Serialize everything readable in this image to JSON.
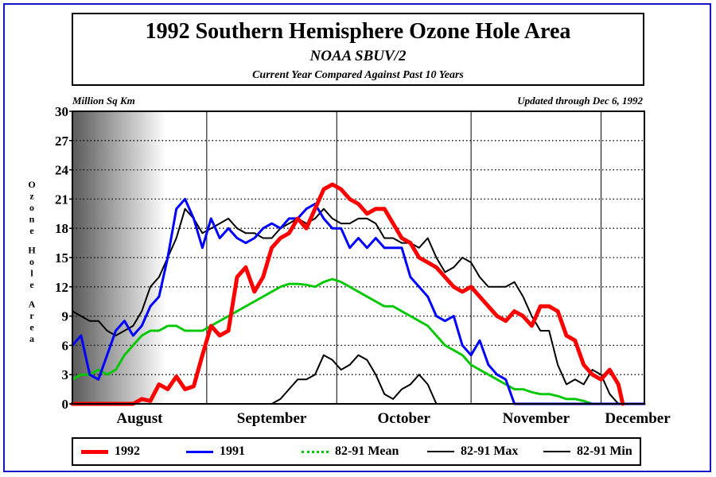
{
  "header": {
    "title": "1992 Southern Hemisphere Ozone Hole Area",
    "subtitle": "NOAA SBUV/2",
    "subsubtitle": "Current Year Compared Against Past 10 Years"
  },
  "chart_data": {
    "type": "line",
    "units_label": "Million Sq Km",
    "updated_label": "Updated through Dec 6, 1992",
    "ylabel": "Ozone Hole Area",
    "ylim": [
      0,
      30
    ],
    "yticks": [
      0,
      3,
      6,
      9,
      12,
      15,
      18,
      21,
      24,
      27,
      30
    ],
    "xlim_day": [
      213,
      345
    ],
    "months": [
      {
        "label": "August",
        "start_day": 213
      },
      {
        "label": "September",
        "start_day": 244
      },
      {
        "label": "October",
        "start_day": 274
      },
      {
        "label": "November",
        "start_day": 305
      },
      {
        "label": "December",
        "start_day": 335
      }
    ],
    "x_unit": "day of year",
    "grid": true,
    "legend_position": "bottom",
    "series": [
      {
        "name": "1992",
        "color": "#ff0000",
        "x": [
          213,
          227,
          229,
          231,
          233,
          235,
          237,
          239,
          241,
          243,
          245,
          247,
          249,
          251,
          253,
          255,
          257,
          259,
          261,
          263,
          265,
          267,
          269,
          271,
          273,
          275,
          277,
          279,
          281,
          283,
          285,
          287,
          289,
          291,
          293,
          295,
          297,
          299,
          301,
          303,
          305,
          307,
          309,
          311,
          313,
          315,
          317,
          319,
          321,
          323,
          325,
          327,
          329,
          331,
          333,
          335,
          337,
          339,
          340
        ],
        "values": [
          0,
          0,
          0.5,
          0.3,
          2,
          1.5,
          2.8,
          1.5,
          1.8,
          5,
          8,
          7,
          7.5,
          13,
          14,
          11.5,
          13,
          16,
          17,
          17.5,
          19,
          18,
          20,
          22,
          22.5,
          22,
          21,
          20.5,
          19.5,
          20,
          20,
          18.5,
          17,
          16.5,
          15,
          14.5,
          14,
          13,
          12,
          11.5,
          12,
          11,
          10,
          9,
          8.5,
          9.5,
          9,
          8,
          10,
          10,
          9.5,
          7,
          6.5,
          4,
          3,
          2.5,
          3.5,
          2,
          0
        ]
      },
      {
        "name": "1991",
        "color": "#0000ff",
        "x": [
          213,
          215,
          217,
          219,
          221,
          223,
          225,
          227,
          229,
          231,
          233,
          235,
          237,
          239,
          241,
          243,
          245,
          247,
          249,
          251,
          253,
          255,
          257,
          259,
          261,
          263,
          265,
          267,
          269,
          271,
          273,
          275,
          277,
          279,
          281,
          283,
          285,
          287,
          289,
          291,
          293,
          295,
          297,
          299,
          301,
          303,
          305,
          307,
          309,
          311,
          313,
          315,
          317,
          319,
          321,
          323,
          325,
          327,
          345
        ],
        "values": [
          6,
          7,
          3,
          2.5,
          5,
          7.5,
          8.5,
          7,
          8,
          10,
          11,
          15,
          20,
          21,
          19,
          16,
          19,
          17,
          18,
          17,
          16.5,
          17,
          18,
          18.5,
          18,
          19,
          19,
          20,
          20.5,
          19,
          18,
          18,
          16,
          17,
          16,
          17,
          16,
          16,
          16,
          13,
          12,
          11,
          9,
          8.5,
          9,
          6,
          5,
          6.5,
          4,
          3,
          2.5,
          0,
          0,
          0,
          0,
          0,
          0,
          0,
          0
        ]
      },
      {
        "name": "82-91 Mean",
        "color": "#00c800",
        "x": [
          213,
          215,
          217,
          219,
          221,
          223,
          225,
          227,
          229,
          231,
          233,
          235,
          237,
          239,
          241,
          243,
          245,
          247,
          249,
          251,
          253,
          255,
          257,
          259,
          261,
          263,
          265,
          267,
          269,
          271,
          273,
          275,
          277,
          279,
          281,
          283,
          285,
          287,
          289,
          291,
          293,
          295,
          297,
          299,
          301,
          303,
          305,
          307,
          309,
          311,
          313,
          315,
          317,
          319,
          321,
          323,
          325,
          327,
          329,
          331,
          333,
          335,
          337
        ],
        "values": [
          2.5,
          3,
          3,
          3.5,
          3,
          3.5,
          5,
          6,
          7,
          7.5,
          7.5,
          8,
          8,
          7.5,
          7.5,
          7.5,
          8,
          8.5,
          9,
          9.5,
          10,
          10.5,
          11,
          11.5,
          12,
          12.3,
          12.3,
          12.2,
          12,
          12.5,
          12.8,
          12.5,
          12,
          11.5,
          11,
          10.5,
          10,
          10,
          9.5,
          9,
          8.5,
          8,
          7,
          6,
          5.5,
          5,
          4,
          3.5,
          3,
          2.5,
          2,
          1.5,
          1.5,
          1.2,
          1,
          1,
          0.8,
          0.5,
          0.5,
          0.3,
          0,
          0,
          0
        ]
      },
      {
        "name": "82-91 Max",
        "color": "#000000",
        "x": [
          213,
          215,
          217,
          219,
          221,
          223,
          225,
          227,
          229,
          231,
          233,
          235,
          237,
          239,
          241,
          243,
          245,
          247,
          249,
          251,
          253,
          255,
          257,
          259,
          261,
          263,
          265,
          267,
          269,
          271,
          273,
          275,
          277,
          279,
          281,
          283,
          285,
          287,
          289,
          291,
          293,
          295,
          297,
          299,
          301,
          303,
          305,
          307,
          309,
          311,
          313,
          315,
          317,
          319,
          321,
          323,
          325,
          327,
          329,
          331,
          333,
          335,
          337,
          339
        ],
        "values": [
          9.5,
          9,
          8.5,
          8.5,
          7.5,
          7,
          7.5,
          8,
          9.5,
          12,
          13,
          15,
          17,
          20,
          19,
          17.5,
          18,
          18.5,
          19,
          18,
          17.5,
          17.5,
          17,
          17,
          18,
          18.5,
          19,
          18.5,
          19,
          20,
          19,
          18.5,
          18.5,
          19,
          19,
          18.5,
          17,
          17,
          16.5,
          16.5,
          16,
          17,
          15,
          13.5,
          14,
          15,
          14.5,
          13,
          12,
          12,
          12,
          12.5,
          11,
          9,
          7.5,
          7.5,
          4,
          2,
          2.5,
          2,
          3.5,
          3,
          1,
          0
        ]
      },
      {
        "name": "82-91 Min",
        "color": "#000000",
        "x": [
          213,
          215,
          217,
          219,
          221,
          223,
          225,
          227,
          229,
          231,
          233,
          235,
          237,
          239,
          241,
          243,
          245,
          247,
          249,
          251,
          253,
          255,
          257,
          259,
          261,
          263,
          265,
          267,
          269,
          271,
          273,
          275,
          277,
          279,
          281,
          283,
          285,
          287,
          289,
          291,
          293,
          295,
          297,
          299,
          301,
          303,
          305,
          307,
          309,
          311,
          313,
          315,
          317,
          319,
          321,
          323,
          325,
          327,
          329,
          331,
          333,
          335,
          337,
          339,
          341,
          343,
          345
        ],
        "values": [
          0,
          0,
          0,
          0,
          0,
          0,
          0,
          0,
          0,
          0,
          0,
          0,
          0,
          0,
          0,
          0,
          0,
          0,
          0,
          0,
          0,
          0,
          0,
          0,
          0.5,
          1.5,
          2.5,
          2.5,
          3,
          5,
          4.5,
          3.5,
          4,
          5,
          4.5,
          3,
          1,
          0.5,
          1.5,
          2,
          3,
          2,
          0,
          0,
          0,
          0,
          0,
          0,
          0,
          0,
          0,
          0,
          0,
          0,
          0,
          0,
          0,
          0,
          0,
          0,
          0,
          0,
          0,
          0,
          0,
          0,
          0
        ]
      }
    ]
  }
}
